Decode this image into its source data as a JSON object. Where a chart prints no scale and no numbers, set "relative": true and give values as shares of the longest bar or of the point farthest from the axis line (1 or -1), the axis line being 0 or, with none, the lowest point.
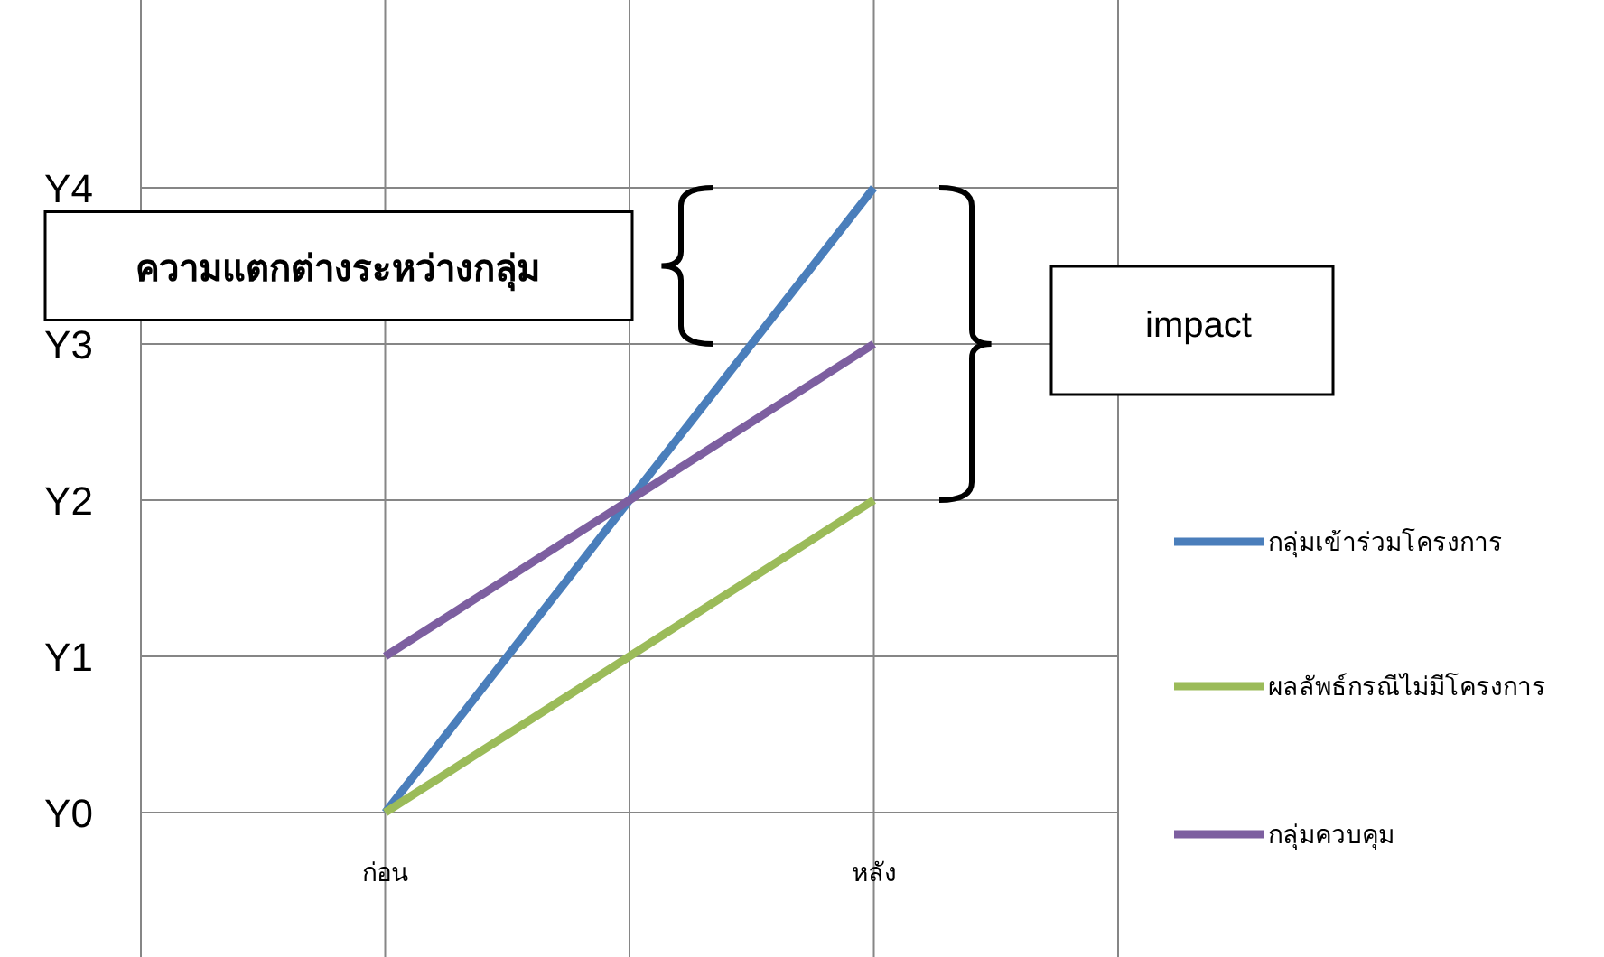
{
  "chart_data": {
    "type": "line",
    "relative": true,
    "categories": [
      "ก่อน",
      "หลัง"
    ],
    "series": [
      {
        "name": "กลุ่มเข้าร่วมโครงการ",
        "color": "#4a7ebb",
        "values": [
          0,
          1
        ]
      },
      {
        "name": "ผลลัพธ์กรณีไม่มีโครงการ",
        "color": "#9bbb59",
        "values": [
          0,
          0.5
        ]
      },
      {
        "name": "กลุ่มควบคุม",
        "color": "#7d5fa0",
        "values": [
          0.25,
          0.75
        ]
      }
    ],
    "grid": true,
    "legend": "right",
    "marker": "none",
    "line_style": "solid",
    "annotations": [
      "Y0",
      "Y1",
      "Y2",
      "Y3",
      "Y4",
      "ความแตกต่างระหว่างกลุ่ม",
      "impact"
    ]
  }
}
